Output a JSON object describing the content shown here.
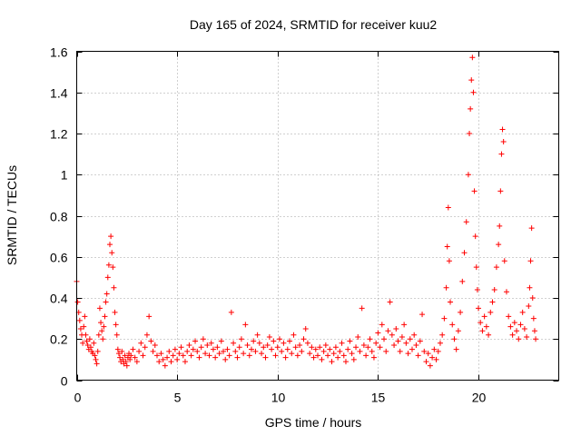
{
  "chart_data": {
    "type": "scatter",
    "title": "Day 165 of 2024, SRMTID for receiver kuu2",
    "xlabel": "GPS time / hours",
    "ylabel": "SRMTID / TECUs",
    "xlim": [
      0,
      24
    ],
    "ylim": [
      0,
      1.6
    ],
    "xticks": [
      0,
      5,
      10,
      15,
      20
    ],
    "xtick_labels": [
      "0",
      "5",
      "10",
      "15",
      "20"
    ],
    "yticks": [
      0,
      0.2,
      0.4,
      0.6,
      0.8,
      1.0,
      1.2,
      1.4,
      1.6
    ],
    "ytick_labels": [
      "0",
      "0.2",
      "0.4",
      "0.6",
      "0.8",
      "1",
      "1.2",
      "1.4",
      "1.6"
    ],
    "grid": true,
    "marker": "+",
    "marker_color": "#ff0000",
    "series": [
      {
        "name": "SRMTID",
        "points": [
          [
            0.0,
            0.48
          ],
          [
            0.05,
            0.38
          ],
          [
            0.1,
            0.33
          ],
          [
            0.15,
            0.29
          ],
          [
            0.2,
            0.25
          ],
          [
            0.25,
            0.22
          ],
          [
            0.3,
            0.18
          ],
          [
            0.35,
            0.26
          ],
          [
            0.4,
            0.31
          ],
          [
            0.45,
            0.22
          ],
          [
            0.5,
            0.19
          ],
          [
            0.55,
            0.17
          ],
          [
            0.6,
            0.15
          ],
          [
            0.65,
            0.2
          ],
          [
            0.7,
            0.16
          ],
          [
            0.75,
            0.14
          ],
          [
            0.8,
            0.13
          ],
          [
            0.85,
            0.18
          ],
          [
            0.9,
            0.12
          ],
          [
            0.95,
            0.1
          ],
          [
            1.0,
            0.08
          ],
          [
            1.05,
            0.14
          ],
          [
            1.1,
            0.22
          ],
          [
            1.15,
            0.35
          ],
          [
            1.2,
            0.28
          ],
          [
            1.25,
            0.24
          ],
          [
            1.3,
            0.2
          ],
          [
            1.35,
            0.26
          ],
          [
            1.4,
            0.31
          ],
          [
            1.45,
            0.38
          ],
          [
            1.5,
            0.42
          ],
          [
            1.55,
            0.5
          ],
          [
            1.6,
            0.56
          ],
          [
            1.65,
            0.66
          ],
          [
            1.7,
            0.7
          ],
          [
            1.75,
            0.62
          ],
          [
            1.8,
            0.55
          ],
          [
            1.85,
            0.45
          ],
          [
            1.9,
            0.33
          ],
          [
            1.95,
            0.27
          ],
          [
            2.0,
            0.22
          ],
          [
            2.05,
            0.15
          ],
          [
            2.1,
            0.13
          ],
          [
            2.15,
            0.11
          ],
          [
            2.2,
            0.09
          ],
          [
            2.25,
            0.14
          ],
          [
            2.3,
            0.1
          ],
          [
            2.35,
            0.08
          ],
          [
            2.4,
            0.12
          ],
          [
            2.45,
            0.09
          ],
          [
            2.5,
            0.07
          ],
          [
            2.55,
            0.11
          ],
          [
            2.6,
            0.13
          ],
          [
            2.65,
            0.1
          ],
          [
            2.7,
            0.12
          ],
          [
            2.8,
            0.15
          ],
          [
            2.9,
            0.11
          ],
          [
            3.0,
            0.09
          ],
          [
            3.1,
            0.14
          ],
          [
            3.2,
            0.18
          ],
          [
            3.3,
            0.12
          ],
          [
            3.4,
            0.16
          ],
          [
            3.5,
            0.22
          ],
          [
            3.6,
            0.31
          ],
          [
            3.7,
            0.19
          ],
          [
            3.8,
            0.14
          ],
          [
            3.9,
            0.17
          ],
          [
            4.0,
            0.12
          ],
          [
            4.1,
            0.09
          ],
          [
            4.2,
            0.13
          ],
          [
            4.3,
            0.1
          ],
          [
            4.4,
            0.07
          ],
          [
            4.5,
            0.11
          ],
          [
            4.6,
            0.14
          ],
          [
            4.7,
            0.09
          ],
          [
            4.8,
            0.12
          ],
          [
            4.9,
            0.15
          ],
          [
            5.0,
            0.1
          ],
          [
            5.1,
            0.13
          ],
          [
            5.2,
            0.16
          ],
          [
            5.3,
            0.12
          ],
          [
            5.4,
            0.09
          ],
          [
            5.5,
            0.14
          ],
          [
            5.6,
            0.17
          ],
          [
            5.7,
            0.12
          ],
          [
            5.8,
            0.15
          ],
          [
            5.9,
            0.19
          ],
          [
            6.0,
            0.14
          ],
          [
            6.1,
            0.11
          ],
          [
            6.2,
            0.16
          ],
          [
            6.3,
            0.2
          ],
          [
            6.4,
            0.13
          ],
          [
            6.5,
            0.17
          ],
          [
            6.6,
            0.12
          ],
          [
            6.7,
            0.18
          ],
          [
            6.8,
            0.15
          ],
          [
            6.9,
            0.11
          ],
          [
            7.0,
            0.16
          ],
          [
            7.1,
            0.13
          ],
          [
            7.2,
            0.19
          ],
          [
            7.3,
            0.14
          ],
          [
            7.4,
            0.1
          ],
          [
            7.5,
            0.15
          ],
          [
            7.6,
            0.12
          ],
          [
            7.7,
            0.33
          ],
          [
            7.8,
            0.18
          ],
          [
            7.9,
            0.14
          ],
          [
            8.0,
            0.11
          ],
          [
            8.1,
            0.16
          ],
          [
            8.2,
            0.2
          ],
          [
            8.3,
            0.13
          ],
          [
            8.4,
            0.27
          ],
          [
            8.5,
            0.17
          ],
          [
            8.6,
            0.12
          ],
          [
            8.7,
            0.15
          ],
          [
            8.8,
            0.19
          ],
          [
            8.9,
            0.14
          ],
          [
            9.0,
            0.22
          ],
          [
            9.1,
            0.18
          ],
          [
            9.2,
            0.13
          ],
          [
            9.3,
            0.16
          ],
          [
            9.4,
            0.11
          ],
          [
            9.5,
            0.17
          ],
          [
            9.6,
            0.21
          ],
          [
            9.7,
            0.15
          ],
          [
            9.8,
            0.19
          ],
          [
            9.9,
            0.12
          ],
          [
            10.0,
            0.16
          ],
          [
            10.1,
            0.2
          ],
          [
            10.2,
            0.14
          ],
          [
            10.3,
            0.18
          ],
          [
            10.4,
            0.11
          ],
          [
            10.5,
            0.15
          ],
          [
            10.6,
            0.19
          ],
          [
            10.7,
            0.13
          ],
          [
            10.8,
            0.22
          ],
          [
            10.9,
            0.16
          ],
          [
            11.0,
            0.12
          ],
          [
            11.1,
            0.17
          ],
          [
            11.2,
            0.14
          ],
          [
            11.3,
            0.2
          ],
          [
            11.4,
            0.25
          ],
          [
            11.5,
            0.18
          ],
          [
            11.6,
            0.13
          ],
          [
            11.7,
            0.16
          ],
          [
            11.8,
            0.11
          ],
          [
            11.9,
            0.15
          ],
          [
            12.0,
            0.12
          ],
          [
            12.1,
            0.16
          ],
          [
            12.2,
            0.1
          ],
          [
            12.3,
            0.14
          ],
          [
            12.4,
            0.17
          ],
          [
            12.5,
            0.12
          ],
          [
            12.6,
            0.15
          ],
          [
            12.7,
            0.09
          ],
          [
            12.8,
            0.13
          ],
          [
            12.9,
            0.16
          ],
          [
            13.0,
            0.11
          ],
          [
            13.1,
            0.14
          ],
          [
            13.2,
            0.18
          ],
          [
            13.3,
            0.12
          ],
          [
            13.4,
            0.09
          ],
          [
            13.5,
            0.15
          ],
          [
            13.6,
            0.19
          ],
          [
            13.7,
            0.13
          ],
          [
            13.8,
            0.1
          ],
          [
            13.9,
            0.16
          ],
          [
            14.0,
            0.21
          ],
          [
            14.1,
            0.14
          ],
          [
            14.2,
            0.35
          ],
          [
            14.3,
            0.17
          ],
          [
            14.4,
            0.12
          ],
          [
            14.5,
            0.16
          ],
          [
            14.6,
            0.2
          ],
          [
            14.7,
            0.14
          ],
          [
            14.8,
            0.11
          ],
          [
            14.9,
            0.18
          ],
          [
            15.0,
            0.23
          ],
          [
            15.1,
            0.16
          ],
          [
            15.2,
            0.27
          ],
          [
            15.3,
            0.2
          ],
          [
            15.4,
            0.14
          ],
          [
            15.5,
            0.24
          ],
          [
            15.6,
            0.38
          ],
          [
            15.7,
            0.22
          ],
          [
            15.8,
            0.17
          ],
          [
            15.9,
            0.25
          ],
          [
            16.0,
            0.19
          ],
          [
            16.1,
            0.14
          ],
          [
            16.2,
            0.21
          ],
          [
            16.3,
            0.27
          ],
          [
            16.4,
            0.18
          ],
          [
            16.5,
            0.13
          ],
          [
            16.6,
            0.2
          ],
          [
            16.7,
            0.15
          ],
          [
            16.8,
            0.22
          ],
          [
            16.9,
            0.17
          ],
          [
            17.0,
            0.12
          ],
          [
            17.1,
            0.19
          ],
          [
            17.2,
            0.32
          ],
          [
            17.3,
            0.14
          ],
          [
            17.4,
            0.09
          ],
          [
            17.5,
            0.13
          ],
          [
            17.6,
            0.07
          ],
          [
            17.7,
            0.11
          ],
          [
            17.8,
            0.15
          ],
          [
            17.9,
            0.1
          ],
          [
            18.0,
            0.14
          ],
          [
            18.1,
            0.18
          ],
          [
            18.2,
            0.22
          ],
          [
            18.3,
            0.3
          ],
          [
            18.4,
            0.45
          ],
          [
            18.45,
            0.65
          ],
          [
            18.5,
            0.84
          ],
          [
            18.55,
            0.58
          ],
          [
            18.6,
            0.38
          ],
          [
            18.7,
            0.27
          ],
          [
            18.8,
            0.2
          ],
          [
            18.9,
            0.15
          ],
          [
            19.0,
            0.24
          ],
          [
            19.1,
            0.33
          ],
          [
            19.2,
            0.48
          ],
          [
            19.3,
            0.62
          ],
          [
            19.4,
            0.77
          ],
          [
            19.5,
            1.0
          ],
          [
            19.55,
            1.2
          ],
          [
            19.6,
            1.32
          ],
          [
            19.65,
            1.46
          ],
          [
            19.7,
            1.57
          ],
          [
            19.75,
            1.4
          ],
          [
            19.8,
            0.92
          ],
          [
            19.85,
            0.7
          ],
          [
            19.9,
            0.55
          ],
          [
            19.95,
            0.44
          ],
          [
            20.0,
            0.35
          ],
          [
            20.1,
            0.28
          ],
          [
            20.2,
            0.24
          ],
          [
            20.3,
            0.31
          ],
          [
            20.4,
            0.26
          ],
          [
            20.5,
            0.22
          ],
          [
            20.6,
            0.33
          ],
          [
            20.7,
            0.38
          ],
          [
            20.8,
            0.44
          ],
          [
            20.9,
            0.55
          ],
          [
            21.0,
            0.66
          ],
          [
            21.05,
            0.75
          ],
          [
            21.1,
            0.92
          ],
          [
            21.15,
            1.1
          ],
          [
            21.2,
            1.22
          ],
          [
            21.25,
            1.16
          ],
          [
            21.3,
            0.58
          ],
          [
            21.4,
            0.43
          ],
          [
            21.5,
            0.31
          ],
          [
            21.6,
            0.26
          ],
          [
            21.7,
            0.22
          ],
          [
            21.8,
            0.28
          ],
          [
            21.9,
            0.24
          ],
          [
            22.0,
            0.2
          ],
          [
            22.1,
            0.27
          ],
          [
            22.2,
            0.33
          ],
          [
            22.3,
            0.25
          ],
          [
            22.4,
            0.21
          ],
          [
            22.5,
            0.36
          ],
          [
            22.55,
            0.45
          ],
          [
            22.6,
            0.58
          ],
          [
            22.65,
            0.74
          ],
          [
            22.7,
            0.4
          ],
          [
            22.75,
            0.3
          ],
          [
            22.8,
            0.24
          ],
          [
            22.85,
            0.2
          ]
        ]
      }
    ]
  }
}
